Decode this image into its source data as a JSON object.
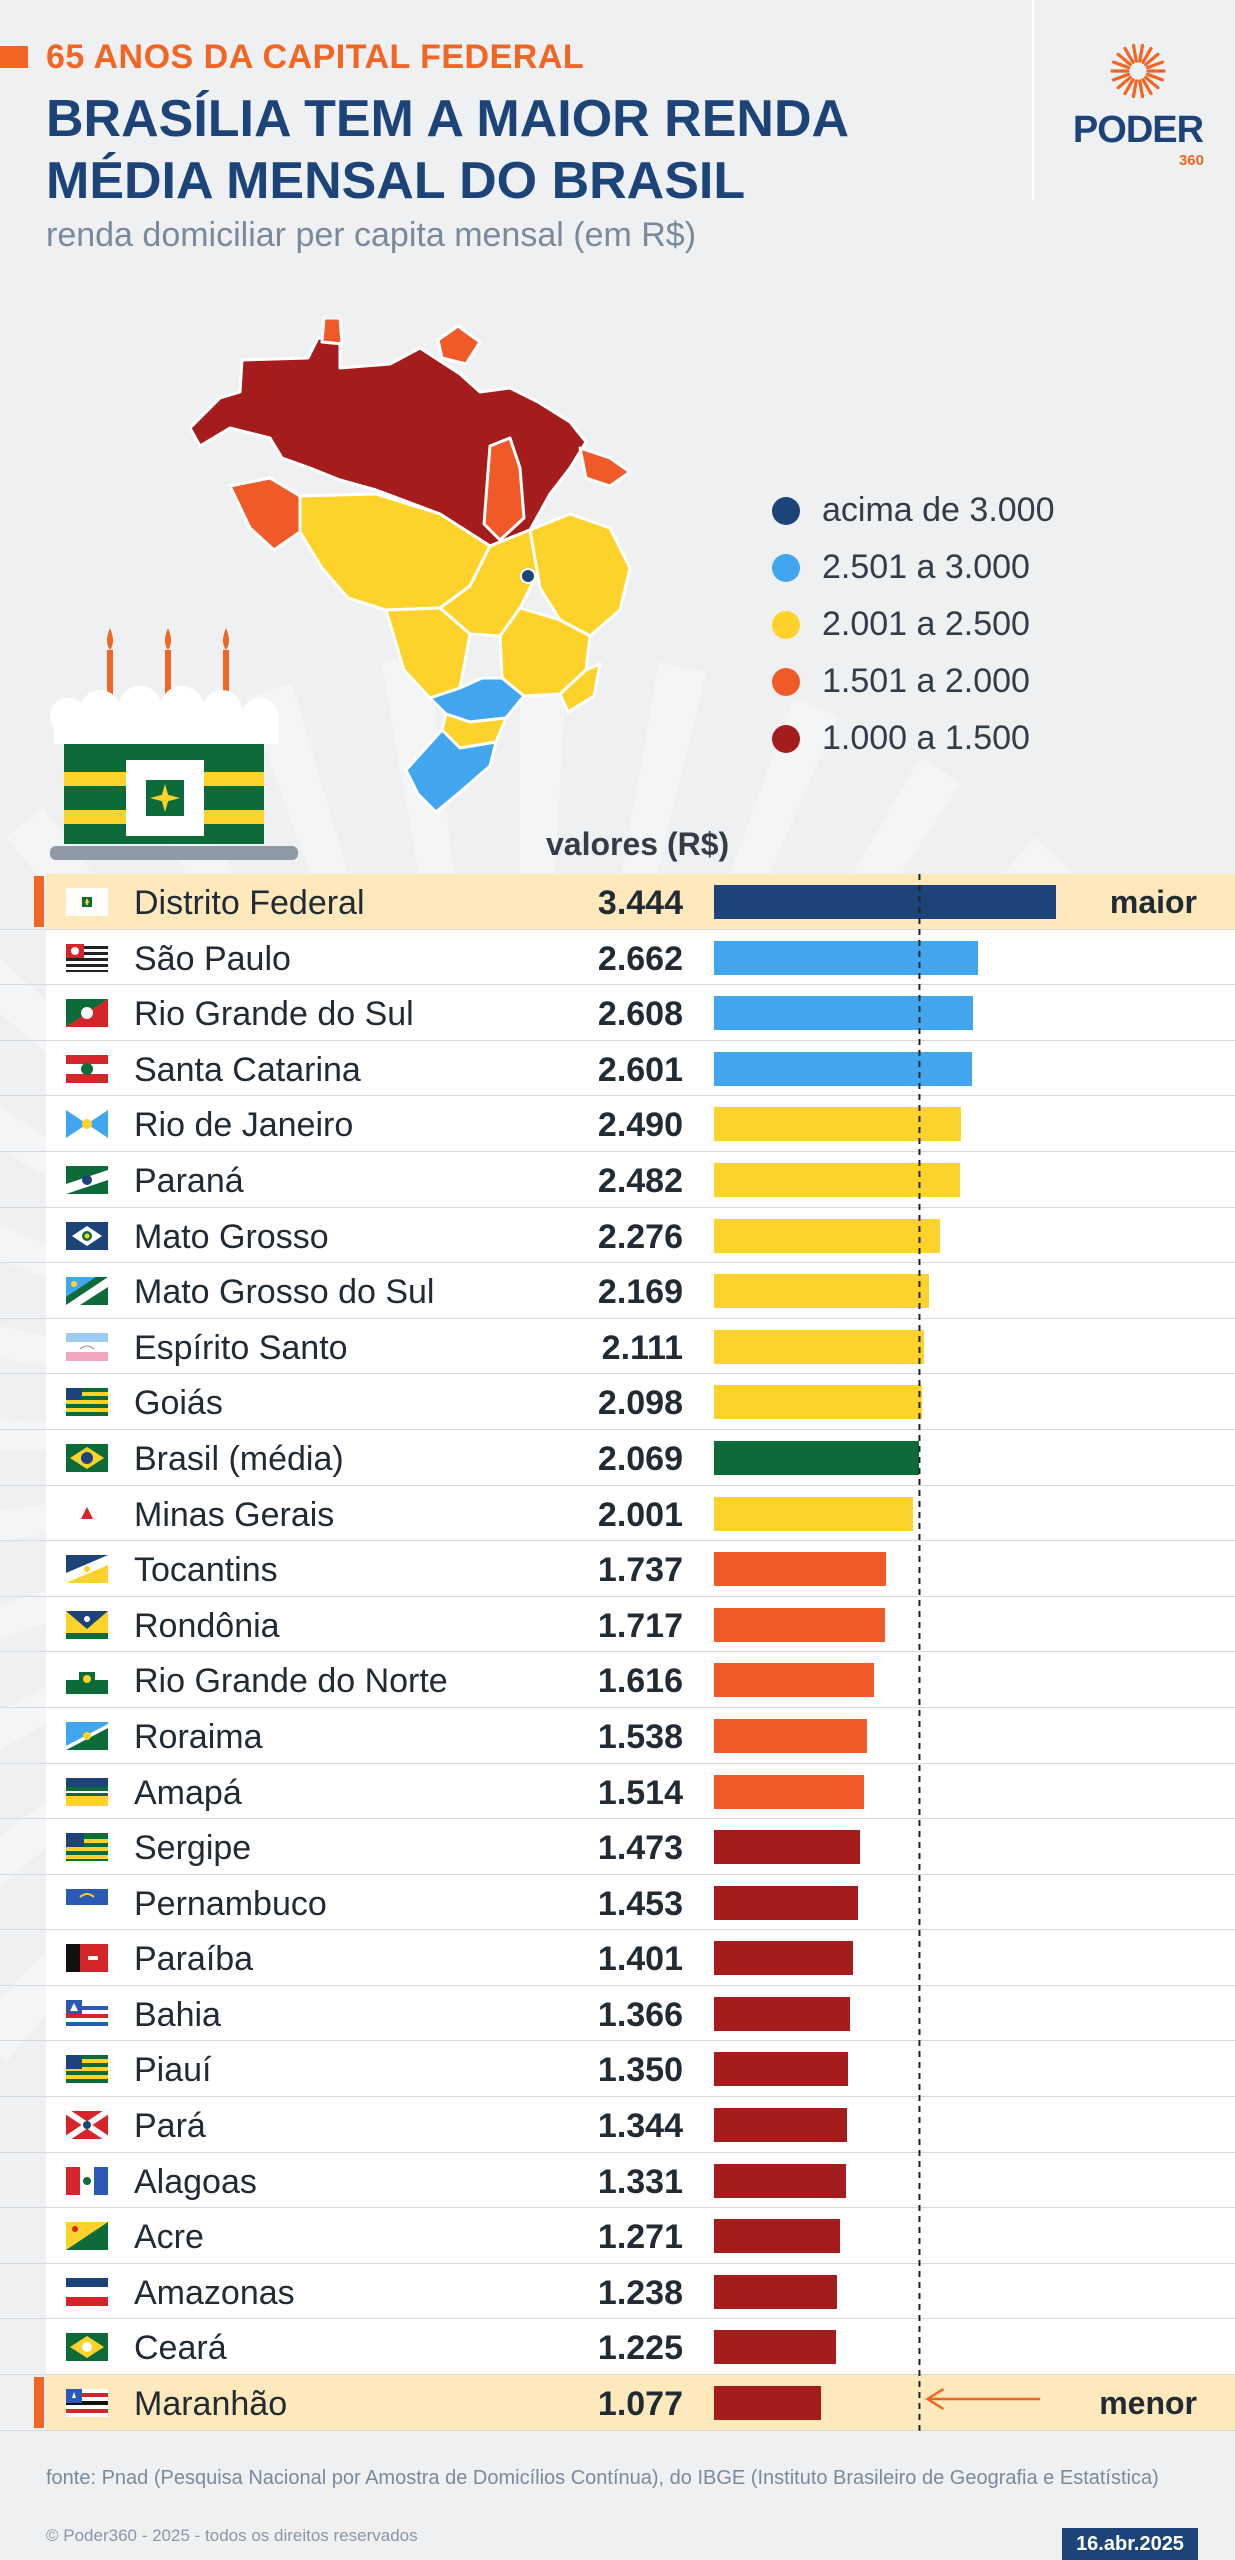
{
  "header": {
    "kicker": "65 ANOS DA CAPITAL FEDERAL",
    "title_line1": "BRASÍLIA TEM A MAIOR RENDA",
    "title_line2": "MÉDIA MENSAL DO BRASIL",
    "subtitle": "renda domiciliar per capita mensal (em R$)"
  },
  "logo": {
    "word": "PODER",
    "num": "360"
  },
  "colors": {
    "acima_3000": "#1d4479",
    "de_2501_3000": "#42a6ee",
    "de_2001_2500": "#fcd22b",
    "de_1501_2000": "#f05a28",
    "de_1000_1500": "#a51c1c",
    "brasil": "#0d6b3a",
    "accent": "#f26522",
    "highlight": "#fde9bb"
  },
  "legend": [
    {
      "label": "acima de 3.000",
      "color": "#1d4479"
    },
    {
      "label": "2.501 a 3.000",
      "color": "#42a6ee"
    },
    {
      "label": "2.001 a 2.500",
      "color": "#fcd22b"
    },
    {
      "label": "1.501 a 2.000",
      "color": "#f05a28"
    },
    {
      "label": "1.000 a 1.500",
      "color": "#a51c1c"
    }
  ],
  "chart_data": {
    "type": "bar",
    "orientation": "horizontal",
    "value_header": "valores (R$)",
    "reference_line": {
      "value": 2069
    },
    "categories": [
      "Distrito Federal",
      "São Paulo",
      "Rio Grande do Sul",
      "Santa Catarina",
      "Rio de Janeiro",
      "Paraná",
      "Mato Grosso",
      "Mato Grosso do Sul",
      "Espírito Santo",
      "Goiás",
      "Brasil (média)",
      "Minas Gerais",
      "Tocantins",
      "Rondônia",
      "Rio Grande do Norte",
      "Roraima",
      "Amapá",
      "Sergipe",
      "Pernambuco",
      "Paraíba",
      "Bahia",
      "Piauí",
      "Pará",
      "Alagoas",
      "Acre",
      "Amazonas",
      "Ceará",
      "Maranhão"
    ],
    "values": [
      3444,
      2662,
      2608,
      2601,
      2490,
      2482,
      2276,
      2169,
      2111,
      2098,
      2069,
      2001,
      1737,
      1717,
      1616,
      1538,
      1514,
      1473,
      1453,
      1401,
      1366,
      1350,
      1344,
      1331,
      1271,
      1238,
      1225,
      1077
    ],
    "value_labels": [
      "3.444",
      "2.662",
      "2.608",
      "2.601",
      "2.490",
      "2.482",
      "2.276",
      "2.169",
      "2.111",
      "2.098",
      "2.069",
      "2.001",
      "1.737",
      "1.717",
      "1.616",
      "1.538",
      "1.514",
      "1.473",
      "1.453",
      "1.401",
      "1.366",
      "1.350",
      "1.344",
      "1.331",
      "1.271",
      "1.238",
      "1.225",
      "1.077"
    ],
    "bar_colors": [
      "#1d4479",
      "#42a6ee",
      "#42a6ee",
      "#42a6ee",
      "#fcd22b",
      "#fcd22b",
      "#fcd22b",
      "#fcd22b",
      "#fcd22b",
      "#fcd22b",
      "#0d6b3a",
      "#fcd22b",
      "#f05a28",
      "#f05a28",
      "#f05a28",
      "#f05a28",
      "#f05a28",
      "#a51c1c",
      "#a51c1c",
      "#a51c1c",
      "#a51c1c",
      "#a51c1c",
      "#a51c1c",
      "#a51c1c",
      "#a51c1c",
      "#a51c1c",
      "#a51c1c",
      "#a51c1c"
    ],
    "flags": [
      "df",
      "sp",
      "rs",
      "sc",
      "rj",
      "pr",
      "mt",
      "ms",
      "es",
      "go",
      "br",
      "mg",
      "to",
      "ro",
      "rn",
      "rr",
      "ap",
      "se",
      "pe",
      "pb",
      "ba",
      "pi",
      "pa",
      "al",
      "ac",
      "am",
      "ce",
      "ma"
    ],
    "annotations": {
      "max_label": "maior",
      "min_label": "menor"
    },
    "xlim": [
      0,
      3444
    ]
  },
  "footer": {
    "source": "fonte: Pnad (Pesquisa Nacional por Amostra de Domicílios Contínua), do IBGE (Instituto Brasileiro de Geografia e Estatística)",
    "copyright": "© Poder360 - 2025 - todos os direitos reservados",
    "date": "16.abr.2025"
  }
}
